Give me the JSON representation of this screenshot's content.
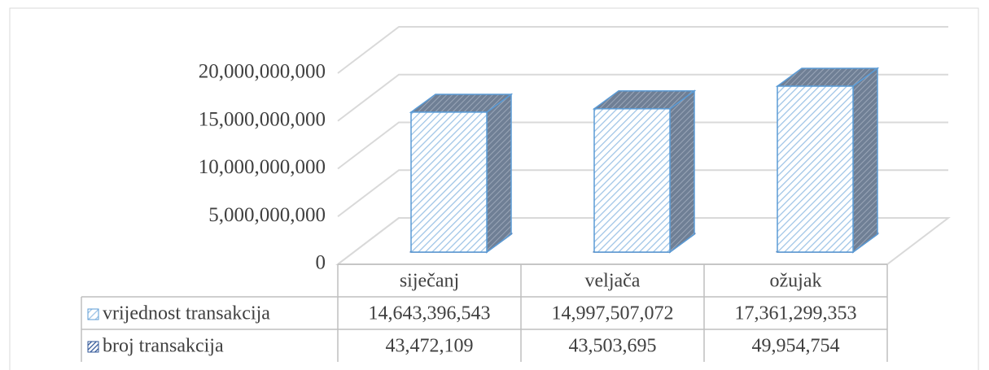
{
  "chart_data": {
    "type": "bar3d",
    "categories": [
      "siječanj",
      "veljača",
      "ožujak"
    ],
    "series": [
      {
        "name": "vrijednost transakcija",
        "color": "#9dc3e6",
        "values": [
          14643396543,
          14997507072,
          17361299353
        ],
        "value_labels": [
          "14,643,396,543",
          "14,997,507,072",
          "17,361,299,353"
        ]
      },
      {
        "name": "broj transakcija",
        "color": "#2f5597",
        "values": [
          43472109,
          43503695,
          49954754
        ],
        "value_labels": [
          "43,472,109",
          "43,503,695",
          "49,954,754"
        ]
      }
    ],
    "ylim": [
      0,
      20000000000
    ],
    "yticks": [
      0,
      {
        "value": 5000000000,
        "label": "5,000,000,000"
      },
      {
        "value": 10000000000,
        "label": "10,000,000,000"
      },
      {
        "value": 15000000000,
        "label": "15,000,000,000"
      },
      {
        "value": 20000000000,
        "label": "20,000,000,000"
      }
    ],
    "grid": true
  }
}
